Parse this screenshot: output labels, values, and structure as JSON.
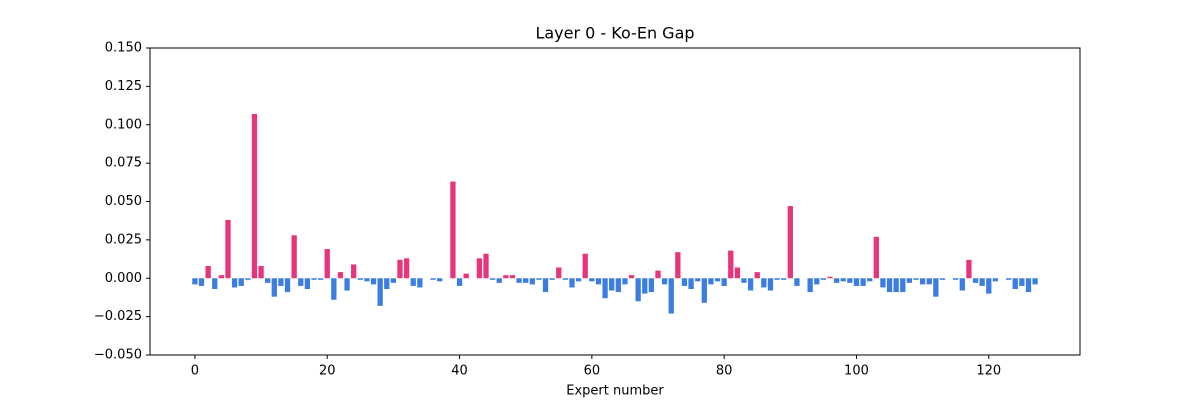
{
  "chart_data": {
    "type": "bar",
    "title": "Layer 0 - Ko-En Gap",
    "x_label": "Expert number",
    "x": [
      0,
      1,
      2,
      3,
      4,
      5,
      6,
      7,
      8,
      9,
      10,
      11,
      12,
      13,
      14,
      15,
      16,
      17,
      18,
      19,
      20,
      21,
      22,
      23,
      24,
      25,
      26,
      27,
      28,
      29,
      30,
      31,
      32,
      33,
      34,
      35,
      36,
      37,
      38,
      39,
      40,
      41,
      42,
      43,
      44,
      45,
      46,
      47,
      48,
      49,
      50,
      51,
      52,
      53,
      54,
      55,
      56,
      57,
      58,
      59,
      60,
      61,
      62,
      63,
      64,
      65,
      66,
      67,
      68,
      69,
      70,
      71,
      72,
      73,
      74,
      75,
      76,
      77,
      78,
      79,
      80,
      81,
      82,
      83,
      84,
      85,
      86,
      87,
      88,
      89,
      90,
      91,
      92,
      93,
      94,
      95,
      96,
      97,
      98,
      99,
      100,
      101,
      102,
      103,
      104,
      105,
      106,
      107,
      108,
      109,
      110,
      111,
      112,
      113,
      114,
      115,
      116,
      117,
      118,
      119,
      120,
      121,
      122,
      123,
      124,
      125,
      126,
      127
    ],
    "values": [
      -0.004,
      -0.005,
      0.008,
      -0.007,
      0.002,
      0.038,
      -0.006,
      -0.005,
      -0.001,
      0.107,
      0.008,
      -0.003,
      -0.012,
      -0.005,
      -0.009,
      0.028,
      -0.005,
      -0.007,
      -0.001,
      -0.001,
      0.019,
      -0.014,
      0.004,
      -0.008,
      0.009,
      -0.001,
      -0.002,
      -0.004,
      -0.018,
      -0.007,
      -0.003,
      0.012,
      0.013,
      -0.005,
      -0.006,
      0.0,
      -0.001,
      -0.002,
      0.0,
      0.063,
      -0.005,
      0.003,
      0.0,
      0.013,
      0.016,
      -0.001,
      -0.003,
      0.002,
      0.002,
      -0.003,
      -0.003,
      -0.004,
      -0.001,
      -0.009,
      -0.001,
      0.007,
      -0.001,
      -0.006,
      -0.002,
      0.016,
      -0.002,
      -0.004,
      -0.013,
      -0.008,
      -0.009,
      -0.004,
      0.002,
      -0.015,
      -0.01,
      -0.009,
      0.005,
      -0.004,
      -0.023,
      0.017,
      -0.005,
      -0.007,
      -0.002,
      -0.016,
      -0.004,
      -0.002,
      -0.005,
      0.018,
      0.007,
      -0.003,
      -0.008,
      0.004,
      -0.006,
      -0.008,
      -0.001,
      -0.001,
      0.047,
      -0.005,
      0.0,
      -0.009,
      -0.004,
      -0.001,
      0.001,
      -0.003,
      -0.002,
      -0.003,
      -0.005,
      -0.005,
      -0.002,
      0.027,
      -0.006,
      -0.009,
      -0.009,
      -0.009,
      -0.003,
      -0.001,
      -0.004,
      -0.004,
      -0.012,
      -0.001,
      0.0,
      -0.001,
      -0.008,
      0.012,
      -0.003,
      -0.005,
      -0.01,
      -0.002,
      0.0,
      -0.001,
      -0.007,
      -0.005,
      -0.009,
      -0.004
    ],
    "positive_color": "#e8347a",
    "negative_color": "#3b7de0",
    "bar_width": 0.8,
    "xlim": [
      -6.79,
      133.79
    ],
    "ylim": [
      -0.05,
      0.15
    ],
    "xticks": [
      0,
      20,
      40,
      60,
      80,
      100,
      120
    ],
    "yticks": [
      {
        "value": -0.05,
        "label": "−0.050"
      },
      {
        "value": -0.025,
        "label": "−0.025"
      },
      {
        "value": 0,
        "label": "0.000"
      },
      {
        "value": 0.025,
        "label": "0.025"
      },
      {
        "value": 0.05,
        "label": "0.050"
      },
      {
        "value": 0.075,
        "label": "0.075"
      },
      {
        "value": 0.1,
        "label": "0.100"
      },
      {
        "value": 0.125,
        "label": "0.125"
      },
      {
        "value": 0.15,
        "label": "0.150"
      }
    ],
    "grid": false
  }
}
